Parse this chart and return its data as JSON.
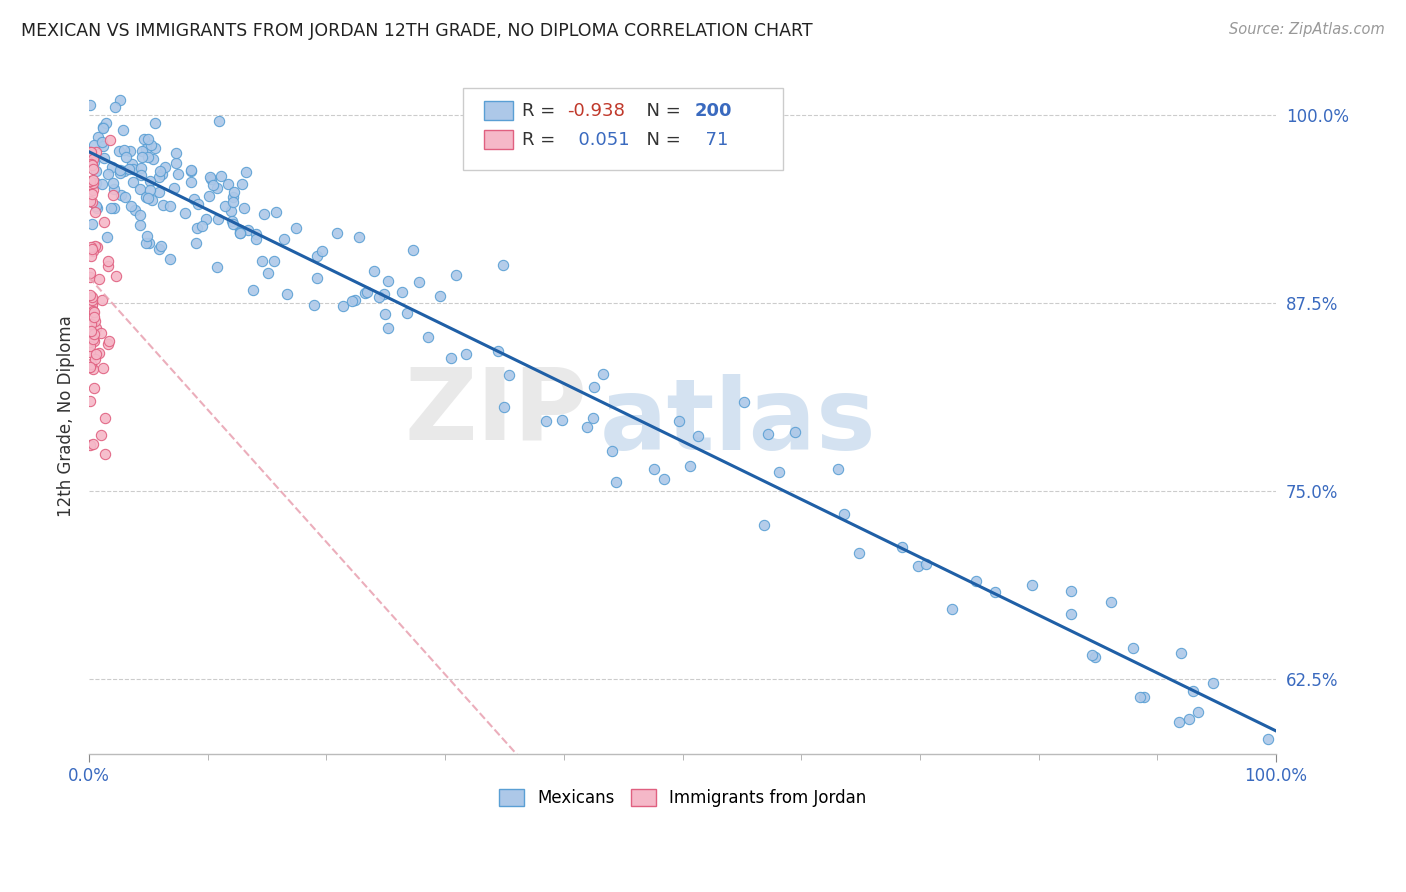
{
  "title": "MEXICAN VS IMMIGRANTS FROM JORDAN 12TH GRADE, NO DIPLOMA CORRELATION CHART",
  "source": "Source: ZipAtlas.com",
  "ylabel": "12th Grade, No Diploma",
  "x_tick_labels": [
    "0.0%",
    "100.0%"
  ],
  "y_tick_labels": [
    "62.5%",
    "75.0%",
    "87.5%",
    "100.0%"
  ],
  "legend_label1": "Mexicans",
  "legend_label2": "Immigrants from Jordan",
  "R1": "-0.938",
  "N1": "200",
  "R2": "0.051",
  "N2": "71",
  "color_mexican_fill": "#adc8e8",
  "color_mexican_edge": "#5a9fd4",
  "color_jordan_fill": "#f5b8c8",
  "color_jordan_edge": "#e06080",
  "color_mexican_line": "#1f5fa6",
  "color_jordan_line": "#e8a0b0",
  "watermark1": "ZIP",
  "watermark2": "atlas",
  "y_min": 0.575,
  "y_max": 1.025,
  "x_min": 0.0,
  "x_max": 1.0
}
